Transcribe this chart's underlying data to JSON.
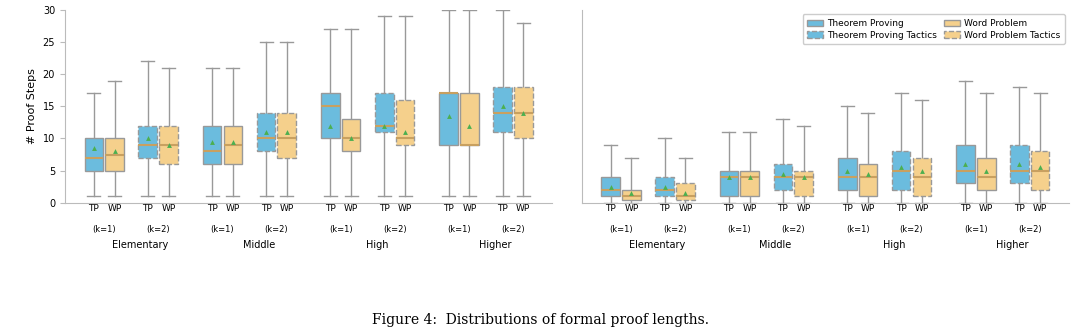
{
  "title": "Figure 4:  Distributions of formal proof lengths.",
  "ylabel": "# Proof Steps",
  "ylim": [
    0,
    30
  ],
  "yticks": [
    0,
    5,
    10,
    15,
    20,
    25,
    30
  ],
  "bg_color": "#ffffff",
  "tp_color": "#6bbcde",
  "wp_color": "#f5d08c",
  "mean_color": "#4caf50",
  "median_color": "#c8a060",
  "edge_color": "#999999",
  "whisker_color": "#999999",
  "groups": [
    {
      "label": "Elementary",
      "section": "left",
      "boxes": [
        {
          "type": "TP",
          "k": 1,
          "style": "solid",
          "whislo": 1,
          "q1": 5,
          "med": 7,
          "q3": 10,
          "whishi": 17,
          "mean": 8.5
        },
        {
          "type": "WP",
          "k": 1,
          "style": "solid",
          "whislo": 1,
          "q1": 5,
          "med": 7.5,
          "q3": 10,
          "whishi": 19,
          "mean": 8.0
        },
        {
          "type": "TP",
          "k": 2,
          "style": "dashed",
          "whislo": 1,
          "q1": 7,
          "med": 9,
          "q3": 12,
          "whishi": 22,
          "mean": 10.0
        },
        {
          "type": "WP",
          "k": 2,
          "style": "dashed",
          "whislo": 1,
          "q1": 6,
          "med": 9,
          "q3": 12,
          "whishi": 21,
          "mean": 9.0
        }
      ]
    },
    {
      "label": "Middle",
      "section": "left",
      "boxes": [
        {
          "type": "TP",
          "k": 1,
          "style": "solid",
          "whislo": 1,
          "q1": 6,
          "med": 8,
          "q3": 12,
          "whishi": 21,
          "mean": 9.5
        },
        {
          "type": "WP",
          "k": 1,
          "style": "solid",
          "whislo": 1,
          "q1": 6,
          "med": 9,
          "q3": 12,
          "whishi": 21,
          "mean": 9.5
        },
        {
          "type": "TP",
          "k": 2,
          "style": "dashed",
          "whislo": 1,
          "q1": 8,
          "med": 10,
          "q3": 14,
          "whishi": 25,
          "mean": 11.0
        },
        {
          "type": "WP",
          "k": 2,
          "style": "dashed",
          "whislo": 1,
          "q1": 7,
          "med": 10,
          "q3": 14,
          "whishi": 25,
          "mean": 11.0
        }
      ]
    },
    {
      "label": "High",
      "section": "left",
      "boxes": [
        {
          "type": "TP",
          "k": 1,
          "style": "solid",
          "whislo": 1,
          "q1": 10,
          "med": 15,
          "q3": 17,
          "whishi": 27,
          "mean": 12.0
        },
        {
          "type": "WP",
          "k": 1,
          "style": "solid",
          "whislo": 1,
          "q1": 8,
          "med": 10,
          "q3": 13,
          "whishi": 27,
          "mean": 10.0
        },
        {
          "type": "TP",
          "k": 2,
          "style": "dashed",
          "whislo": 1,
          "q1": 11,
          "med": 12,
          "q3": 17,
          "whishi": 29,
          "mean": 12.0
        },
        {
          "type": "WP",
          "k": 2,
          "style": "dashed",
          "whislo": 1,
          "q1": 9,
          "med": 10,
          "q3": 16,
          "whishi": 29,
          "mean": 11.0
        }
      ]
    },
    {
      "label": "Higher",
      "section": "left",
      "boxes": [
        {
          "type": "TP",
          "k": 1,
          "style": "solid",
          "whislo": 1,
          "q1": 9,
          "med": 17,
          "q3": 17,
          "whishi": 30,
          "mean": 13.5
        },
        {
          "type": "WP",
          "k": 1,
          "style": "solid",
          "whislo": 1,
          "q1": 9,
          "med": 9,
          "q3": 17,
          "whishi": 30,
          "mean": 12.0
        },
        {
          "type": "TP",
          "k": 2,
          "style": "dashed",
          "whislo": 1,
          "q1": 11,
          "med": 14,
          "q3": 18,
          "whishi": 30,
          "mean": 15.0
        },
        {
          "type": "WP",
          "k": 2,
          "style": "dashed",
          "whislo": 1,
          "q1": 10,
          "med": 14,
          "q3": 18,
          "whishi": 28,
          "mean": 14.0
        }
      ]
    },
    {
      "label": "Elementary",
      "section": "right",
      "boxes": [
        {
          "type": "TP",
          "k": 1,
          "style": "solid",
          "whislo": 0,
          "q1": 1,
          "med": 2,
          "q3": 4,
          "whishi": 9,
          "mean": 2.5
        },
        {
          "type": "WP",
          "k": 1,
          "style": "solid",
          "whislo": 0,
          "q1": 0.5,
          "med": 1,
          "q3": 2,
          "whishi": 7,
          "mean": 1.5
        },
        {
          "type": "TP",
          "k": 2,
          "style": "dashed",
          "whislo": 0,
          "q1": 1,
          "med": 2,
          "q3": 4,
          "whishi": 10,
          "mean": 2.5
        },
        {
          "type": "WP",
          "k": 2,
          "style": "dashed",
          "whislo": 0,
          "q1": 0.5,
          "med": 1,
          "q3": 3,
          "whishi": 7,
          "mean": 1.5
        }
      ]
    },
    {
      "label": "Middle",
      "section": "right",
      "boxes": [
        {
          "type": "TP",
          "k": 1,
          "style": "solid",
          "whislo": 0,
          "q1": 1,
          "med": 4,
          "q3": 5,
          "whishi": 11,
          "mean": 4.0
        },
        {
          "type": "WP",
          "k": 1,
          "style": "solid",
          "whislo": 0,
          "q1": 1,
          "med": 4,
          "q3": 5,
          "whishi": 11,
          "mean": 4.0
        },
        {
          "type": "TP",
          "k": 2,
          "style": "dashed",
          "whislo": 0,
          "q1": 2,
          "med": 4,
          "q3": 6,
          "whishi": 13,
          "mean": 4.5
        },
        {
          "type": "WP",
          "k": 2,
          "style": "dashed",
          "whislo": 0,
          "q1": 1,
          "med": 4,
          "q3": 5,
          "whishi": 12,
          "mean": 4.0
        }
      ]
    },
    {
      "label": "High",
      "section": "right",
      "boxes": [
        {
          "type": "TP",
          "k": 1,
          "style": "solid",
          "whislo": 0,
          "q1": 2,
          "med": 4,
          "q3": 7,
          "whishi": 15,
          "mean": 5.0
        },
        {
          "type": "WP",
          "k": 1,
          "style": "solid",
          "whislo": 0,
          "q1": 1,
          "med": 4,
          "q3": 6,
          "whishi": 14,
          "mean": 4.5
        },
        {
          "type": "TP",
          "k": 2,
          "style": "dashed",
          "whislo": 0,
          "q1": 2,
          "med": 5,
          "q3": 8,
          "whishi": 17,
          "mean": 5.5
        },
        {
          "type": "WP",
          "k": 2,
          "style": "dashed",
          "whislo": 0,
          "q1": 1,
          "med": 4,
          "q3": 7,
          "whishi": 16,
          "mean": 5.0
        }
      ]
    },
    {
      "label": "Higher",
      "section": "right",
      "boxes": [
        {
          "type": "TP",
          "k": 1,
          "style": "solid",
          "whislo": 0,
          "q1": 3,
          "med": 5,
          "q3": 9,
          "whishi": 19,
          "mean": 6.0
        },
        {
          "type": "WP",
          "k": 1,
          "style": "solid",
          "whislo": 0,
          "q1": 2,
          "med": 4,
          "q3": 7,
          "whishi": 17,
          "mean": 5.0
        },
        {
          "type": "TP",
          "k": 2,
          "style": "dashed",
          "whislo": 0,
          "q1": 3,
          "med": 5,
          "q3": 9,
          "whishi": 18,
          "mean": 6.0
        },
        {
          "type": "WP",
          "k": 2,
          "style": "dashed",
          "whislo": 0,
          "q1": 2,
          "med": 5,
          "q3": 8,
          "whishi": 17,
          "mean": 5.5
        }
      ]
    }
  ]
}
